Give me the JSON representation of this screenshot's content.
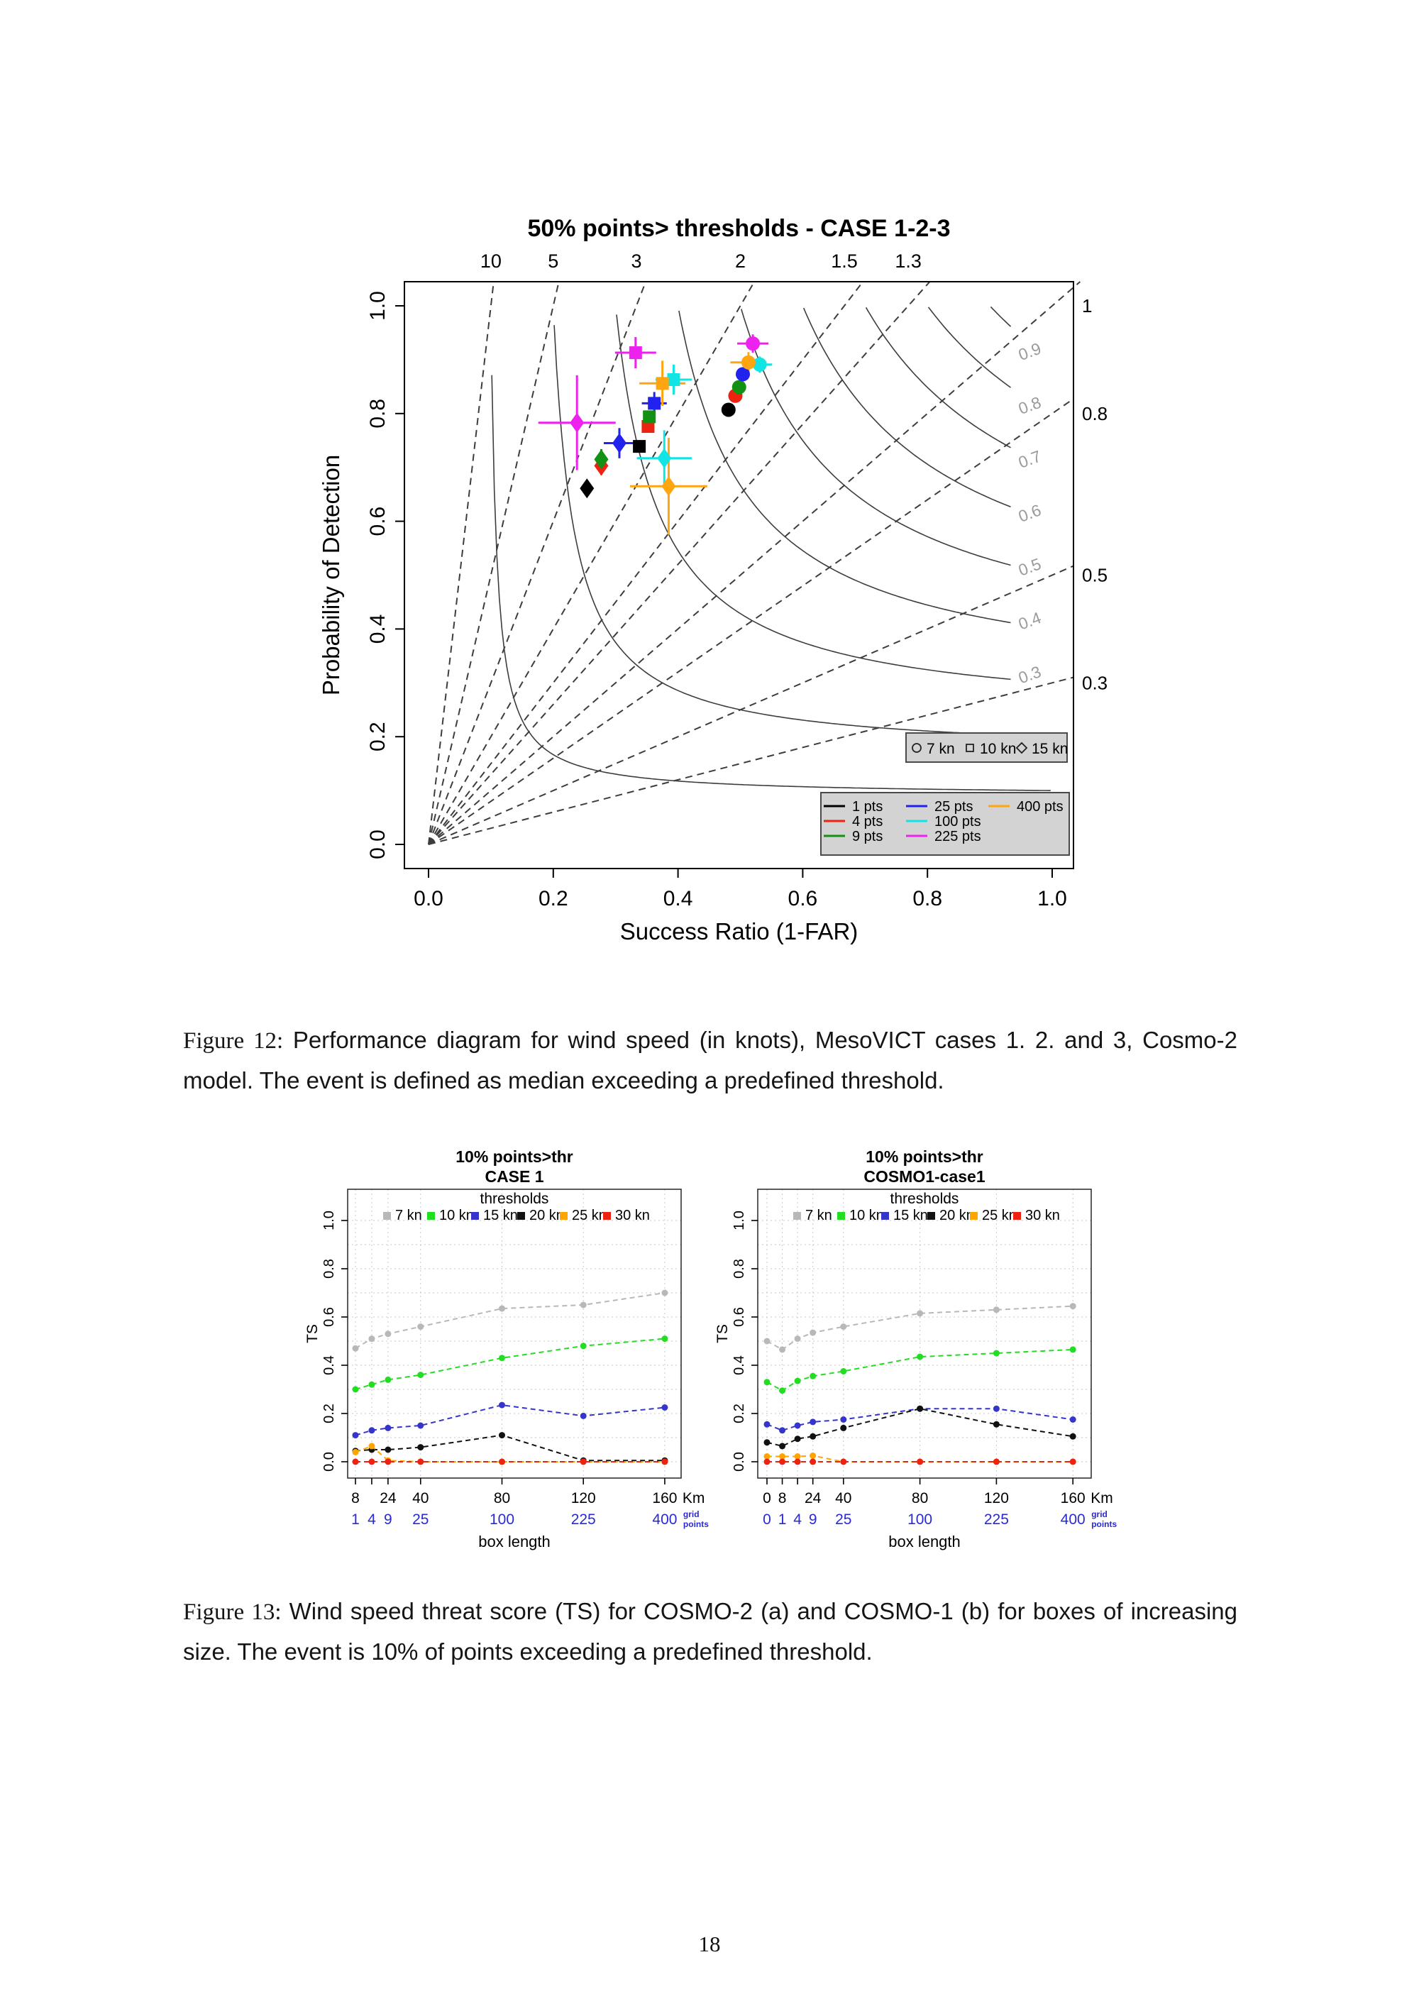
{
  "page_number": "18",
  "captions": {
    "fig12_label": "Figure 12:",
    "fig12_text": "Performance diagram for wind speed (in knots), MesoVICT cases 1. 2. and 3, Cosmo-2 model. The event is defined as median exceeding a predefined threshold.",
    "fig13_label": "Figure 13:",
    "fig13_text": "Wind speed threat score (TS) for COSMO-2 (a) and COSMO-1 (b) for boxes of increasing size. The event is 10% of points exceeding a predefined threshold."
  },
  "colors": {
    "pts_1": "#000000",
    "pts_4": "#ee2211",
    "pts_9": "#129112",
    "pts_25": "#2222ee",
    "pts_100": "#11e4e4",
    "pts_225": "#ee22ee",
    "pts_400": "#ffa510",
    "thr_7": "#b8b8b8",
    "thr_10": "#22dd22",
    "thr_15": "#3535cc",
    "thr_20": "#111111",
    "thr_25": "#ffa500",
    "thr_30": "#ee2211",
    "legend_bg": "#d3d3d3",
    "legend_border": "#4a4a4a",
    "axis_blue": "#2a2ad4",
    "contour_label": "#9a9a9a",
    "bias_line": "#3d3d3d",
    "contour_line": "#3d3d3d",
    "grid": "#c8c8c8"
  },
  "chart_data": [
    {
      "id": "fig12",
      "type": "scatter",
      "title": "50% points> thresholds - CASE 1-2-3",
      "xlabel": "Success Ratio (1-FAR)",
      "ylabel": "Probability of Detection",
      "xlim": [
        0,
        1
      ],
      "ylim": [
        0,
        1
      ],
      "x_ticks": [
        "0.0",
        "0.2",
        "0.4",
        "0.6",
        "0.8",
        "1.0"
      ],
      "y_ticks": [
        "0.0",
        "0.2",
        "0.4",
        "0.6",
        "0.8",
        "1.0"
      ],
      "bias_lines": [
        10,
        5,
        3,
        2,
        1.5,
        1.3,
        1,
        0.8,
        0.5,
        0.3
      ],
      "bias_top_labels": [
        {
          "value": 10,
          "label": "10"
        },
        {
          "value": 5,
          "label": "5"
        },
        {
          "value": 3,
          "label": "3"
        },
        {
          "value": 2,
          "label": "2"
        },
        {
          "value": 1.5,
          "label": "1.5"
        },
        {
          "value": 1.3,
          "label": "1.3"
        }
      ],
      "bias_right_labels": [
        {
          "value": 1,
          "label": "1"
        },
        {
          "value": 0.8,
          "label": "0.8"
        },
        {
          "value": 0.5,
          "label": "0.5"
        },
        {
          "value": 0.3,
          "label": "0.3"
        }
      ],
      "csi_contours": [
        0.1,
        0.2,
        0.3,
        0.4,
        0.5,
        0.6,
        0.7,
        0.8,
        0.9
      ],
      "csi_labeled": [
        {
          "value": 0.9,
          "label": "0.9"
        },
        {
          "value": 0.8,
          "label": "0.8"
        },
        {
          "value": 0.7,
          "label": "0.7"
        },
        {
          "value": 0.6,
          "label": "0.6"
        },
        {
          "value": 0.5,
          "label": "0.5"
        },
        {
          "value": 0.4,
          "label": "0.4"
        },
        {
          "value": 0.3,
          "label": "0.3"
        }
      ],
      "shape_legend": [
        {
          "shape": "circle",
          "label": "7 kn"
        },
        {
          "shape": "square",
          "label": "10 kn"
        },
        {
          "shape": "diamond",
          "label": "15 kn"
        }
      ],
      "series_legend": [
        {
          "label": "1 pts",
          "color_key": "pts_1"
        },
        {
          "label": "4 pts",
          "color_key": "pts_4"
        },
        {
          "label": "9 pts",
          "color_key": "pts_9"
        },
        {
          "label": "25 pts",
          "color_key": "pts_25"
        },
        {
          "label": "100 pts",
          "color_key": "pts_100"
        },
        {
          "label": "225 pts",
          "color_key": "pts_225"
        },
        {
          "label": "400 pts",
          "color_key": "pts_400"
        }
      ],
      "points": [
        {
          "shape": "circle",
          "series": "1 pts",
          "color_key": "pts_1",
          "x": 0.481,
          "y": 0.807,
          "xe": 0,
          "ye": 0
        },
        {
          "shape": "circle",
          "series": "4 pts",
          "color_key": "pts_4",
          "x": 0.492,
          "y": 0.833,
          "xe": 0,
          "ye": 0
        },
        {
          "shape": "circle",
          "series": "9 pts",
          "color_key": "pts_9",
          "x": 0.498,
          "y": 0.849,
          "xe": 0,
          "ye": 0
        },
        {
          "shape": "circle",
          "series": "25 pts",
          "color_key": "pts_25",
          "x": 0.504,
          "y": 0.873,
          "xe": 0,
          "ye": 0
        },
        {
          "shape": "circle",
          "series": "100 pts",
          "color_key": "pts_100",
          "x": 0.531,
          "y": 0.891,
          "xe": 0.02,
          "ye": 0.015
        },
        {
          "shape": "circle",
          "series": "400 pts",
          "color_key": "pts_400",
          "x": 0.513,
          "y": 0.895,
          "xe": 0.029,
          "ye": 0.019
        },
        {
          "shape": "circle",
          "series": "225 pts",
          "color_key": "pts_225",
          "x": 0.52,
          "y": 0.93,
          "xe": 0.025,
          "ye": 0.017
        },
        {
          "shape": "square",
          "series": "1 pts",
          "color_key": "pts_1",
          "x": 0.338,
          "y": 0.739,
          "xe": 0,
          "ye": 0
        },
        {
          "shape": "square",
          "series": "4 pts",
          "color_key": "pts_4",
          "x": 0.352,
          "y": 0.776,
          "xe": 0,
          "ye": 0
        },
        {
          "shape": "square",
          "series": "9 pts",
          "color_key": "pts_9",
          "x": 0.354,
          "y": 0.794,
          "xe": 0,
          "ye": 0
        },
        {
          "shape": "square",
          "series": "25 pts",
          "color_key": "pts_25",
          "x": 0.362,
          "y": 0.819,
          "xe": 0.02,
          "ye": 0.021
        },
        {
          "shape": "square",
          "series": "100 pts",
          "color_key": "pts_100",
          "x": 0.393,
          "y": 0.863,
          "xe": 0.029,
          "ye": 0.028
        },
        {
          "shape": "square",
          "series": "400 pts",
          "color_key": "pts_400",
          "x": 0.375,
          "y": 0.856,
          "xe": 0.037,
          "ye": 0.042
        },
        {
          "shape": "square",
          "series": "225 pts",
          "color_key": "pts_225",
          "x": 0.332,
          "y": 0.913,
          "xe": 0.033,
          "ye": 0.029
        },
        {
          "shape": "diamond",
          "series": "1 pts",
          "color_key": "pts_1",
          "x": 0.254,
          "y": 0.661,
          "xe": 0,
          "ye": 0
        },
        {
          "shape": "diamond",
          "series": "4 pts",
          "color_key": "pts_4",
          "x": 0.277,
          "y": 0.703,
          "xe": 0,
          "ye": 0.017
        },
        {
          "shape": "diamond",
          "series": "9 pts",
          "color_key": "pts_9",
          "x": 0.277,
          "y": 0.715,
          "xe": 0.01,
          "ye": 0.019
        },
        {
          "shape": "diamond",
          "series": "25 pts",
          "color_key": "pts_25",
          "x": 0.306,
          "y": 0.745,
          "xe": 0.025,
          "ye": 0.028
        },
        {
          "shape": "diamond",
          "series": "100 pts",
          "color_key": "pts_100",
          "x": 0.378,
          "y": 0.717,
          "xe": 0.044,
          "ye": 0.052
        },
        {
          "shape": "diamond",
          "series": "400 pts",
          "color_key": "pts_400",
          "x": 0.385,
          "y": 0.665,
          "xe": 0.062,
          "ye": 0.09
        },
        {
          "shape": "diamond",
          "series": "225 pts",
          "color_key": "pts_225",
          "x": 0.238,
          "y": 0.783,
          "xe": 0.062,
          "ye": 0.088
        }
      ]
    },
    {
      "id": "fig13a",
      "type": "line",
      "title_lines": [
        "10% points>thr",
        "CASE 1"
      ],
      "legend_title": "thresholds",
      "ylabel": "TS",
      "xlabel": "box length",
      "x_unit": "Km",
      "grid_unit_lines": [
        "grid",
        "points"
      ],
      "y_ticks": [
        "0.0",
        "0.2",
        "0.4",
        "0.6",
        "0.8",
        "1.0"
      ],
      "ylim": [
        0,
        1
      ],
      "x_km": [
        8,
        16,
        24,
        40,
        80,
        120,
        160
      ],
      "x_tick_labels": [
        "8",
        "",
        "24",
        "40",
        "80",
        "120",
        "160"
      ],
      "grid_point_labels": [
        "1",
        "4",
        "9",
        "25",
        "100",
        "225",
        "400"
      ],
      "series": [
        {
          "label": "7 kn",
          "color_key": "thr_7",
          "values": [
            0.47,
            0.51,
            0.53,
            0.56,
            0.635,
            0.65,
            0.7
          ]
        },
        {
          "label": "10 kn",
          "color_key": "thr_10",
          "values": [
            0.3,
            0.32,
            0.34,
            0.36,
            0.43,
            0.48,
            0.51
          ]
        },
        {
          "label": "15 kn",
          "color_key": "thr_15",
          "values": [
            0.11,
            0.13,
            0.14,
            0.15,
            0.235,
            0.19,
            0.225
          ]
        },
        {
          "label": "20 kn",
          "color_key": "thr_20",
          "values": [
            0.045,
            0.05,
            0.05,
            0.06,
            0.11,
            0.005,
            0.005
          ]
        },
        {
          "label": "25 kn",
          "color_key": "thr_25",
          "values": [
            0.04,
            0.065,
            0.005,
            0,
            0,
            0,
            0
          ]
        },
        {
          "label": "30 kn",
          "color_key": "thr_30",
          "values": [
            0,
            0,
            0,
            0,
            0,
            0,
            0
          ]
        }
      ]
    },
    {
      "id": "fig13b",
      "type": "line",
      "title_lines": [
        "10% points>thr",
        "COSMO1-case1"
      ],
      "legend_title": "thresholds",
      "ylabel": "TS",
      "xlabel": "box length",
      "x_unit": "Km",
      "grid_unit_lines": [
        "grid",
        "points"
      ],
      "y_ticks": [
        "0.0",
        "0.2",
        "0.4",
        "0.6",
        "0.8",
        "1.0"
      ],
      "ylim": [
        0,
        1
      ],
      "x_km": [
        0,
        8,
        16,
        24,
        40,
        80,
        120,
        160
      ],
      "x_tick_labels": [
        "0",
        "8",
        "",
        "24",
        "40",
        "80",
        "120",
        "160"
      ],
      "grid_point_labels": [
        "0",
        "1",
        "4",
        "9",
        "25",
        "100",
        "225",
        "400"
      ],
      "series": [
        {
          "label": "7 kn",
          "color_key": "thr_7",
          "values": [
            0.5,
            0.465,
            0.51,
            0.535,
            0.56,
            0.615,
            0.63,
            0.645
          ]
        },
        {
          "label": "10 kn",
          "color_key": "thr_10",
          "values": [
            0.33,
            0.295,
            0.335,
            0.355,
            0.375,
            0.435,
            0.45,
            0.465
          ]
        },
        {
          "label": "15 kn",
          "color_key": "thr_15",
          "values": [
            0.155,
            0.13,
            0.15,
            0.165,
            0.175,
            0.22,
            0.22,
            0.175
          ]
        },
        {
          "label": "20 kn",
          "color_key": "thr_20",
          "values": [
            0.08,
            0.065,
            0.095,
            0.105,
            0.14,
            0.22,
            0.155,
            0.105
          ]
        },
        {
          "label": "25 kn",
          "color_key": "thr_25",
          "values": [
            0.022,
            0.022,
            0.022,
            0.025,
            0,
            0,
            0,
            0
          ]
        },
        {
          "label": "30 kn",
          "color_key": "thr_30",
          "values": [
            0,
            0,
            0,
            0,
            0,
            0,
            0,
            0
          ]
        }
      ]
    }
  ]
}
